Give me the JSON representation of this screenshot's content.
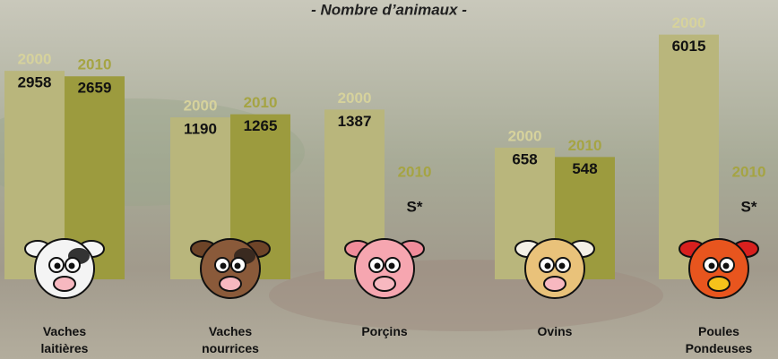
{
  "chart_data": {
    "type": "bar",
    "title": "- Nombre d’animaux -",
    "categories": [
      "Vaches laitières",
      "Vaches nourrices",
      "Porçins",
      "Ovins",
      "Poules Pondeuses"
    ],
    "series": [
      {
        "name": "2000",
        "color": "#b9b67c",
        "values": [
          2958,
          1190,
          1387,
          658,
          6015
        ]
      },
      {
        "name": "2010",
        "color": "#9c9b3e",
        "values": [
          2659,
          1265,
          null,
          548,
          null
        ],
        "value_labels": [
          "2659",
          "1265",
          "S*",
          "548",
          "S*"
        ]
      }
    ],
    "ylim": [
      50,
      7000
    ],
    "log_scale": true
  }
}
